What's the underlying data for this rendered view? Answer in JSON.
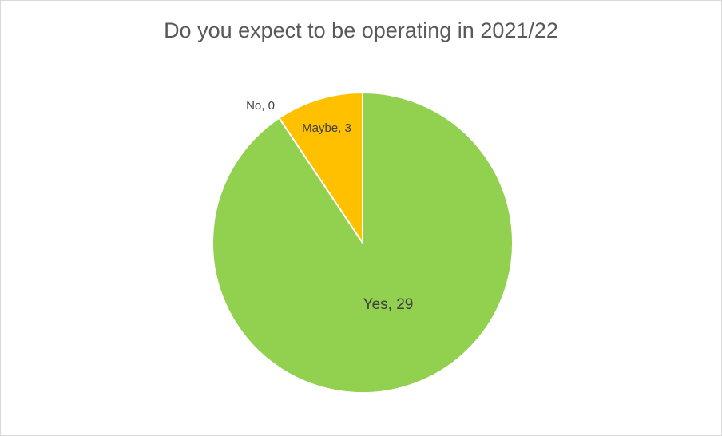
{
  "chart_data": {
    "type": "pie",
    "title": "Do you expect to be operating in 2021/22",
    "categories": [
      "Yes",
      "No",
      "Maybe"
    ],
    "values": [
      29,
      0,
      3
    ],
    "labels": [
      "Yes, 29",
      "No, 0",
      "Maybe, 3"
    ],
    "colors": [
      "#92d050",
      "#ff0000",
      "#ffc000"
    ],
    "legend": "none"
  }
}
